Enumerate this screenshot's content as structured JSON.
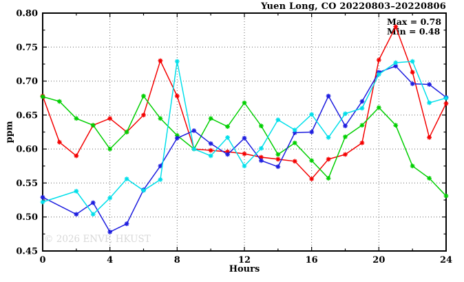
{
  "title": "Yuen Long, CO 20220803–20220806",
  "annotation": {
    "max_label": "Max = 0.78",
    "min_label": "Min = 0.48"
  },
  "watermark": "© 2026 ENVF, HKUST",
  "colors": {
    "axis": "#000000",
    "grid": "#666666",
    "watermark": "#d8d8d8"
  },
  "chart_data": {
    "type": "line",
    "title": "Yuen Long, CO 20220803–20220806",
    "xlabel": "Hours",
    "ylabel": "ppm",
    "xlim": [
      0,
      24
    ],
    "ylim": [
      0.45,
      0.8
    ],
    "xticks": [
      0,
      4,
      8,
      12,
      16,
      20,
      24
    ],
    "yticks": [
      0.45,
      0.5,
      0.55,
      0.6,
      0.65,
      0.7,
      0.75,
      0.8
    ],
    "x_minor_step": 2,
    "y_minor_step": 0.025,
    "grid": true,
    "legend_position": "none",
    "marker": "asterisk",
    "stats": {
      "max": 0.78,
      "min": 0.48
    },
    "x": [
      0,
      1,
      2,
      3,
      4,
      5,
      6,
      7,
      8,
      9,
      10,
      11,
      12,
      13,
      14,
      15,
      16,
      17,
      18,
      19,
      20,
      21,
      22,
      23,
      24
    ],
    "series": [
      {
        "name": "series-red",
        "color": "#f40000",
        "values": [
          0.678,
          0.61,
          0.59,
          0.635,
          0.645,
          0.625,
          0.65,
          0.73,
          0.678,
          0.6,
          0.598,
          0.596,
          0.593,
          0.588,
          0.585,
          0.582,
          0.556,
          0.585,
          0.592,
          0.609,
          0.731,
          0.78,
          0.713,
          0.617,
          0.667
        ]
      },
      {
        "name": "series-green",
        "color": "#00cf00",
        "values": [
          0.677,
          0.67,
          0.645,
          0.635,
          0.6,
          0.625,
          0.678,
          0.645,
          0.62,
          0.6,
          0.645,
          0.633,
          0.668,
          0.634,
          0.592,
          0.609,
          0.583,
          0.557,
          0.618,
          0.635,
          0.661,
          0.635,
          0.575,
          0.557,
          0.531
        ]
      },
      {
        "name": "series-blue",
        "color": "#1c1cdf",
        "values": [
          0.529,
          null,
          0.504,
          0.521,
          0.478,
          0.49,
          0.54,
          0.575,
          0.616,
          0.627,
          0.608,
          0.592,
          0.616,
          0.583,
          0.574,
          0.624,
          0.625,
          0.678,
          0.634,
          0.67,
          0.713,
          0.722,
          0.696,
          0.695,
          0.676
        ]
      },
      {
        "name": "series-cyan",
        "color": "#00dfea",
        "values": [
          0.522,
          null,
          0.538,
          0.504,
          0.528,
          0.556,
          0.539,
          0.555,
          0.729,
          0.6,
          0.59,
          0.617,
          0.575,
          0.601,
          0.643,
          0.628,
          0.651,
          0.617,
          0.652,
          0.66,
          0.71,
          0.727,
          0.729,
          0.668,
          0.675
        ]
      }
    ]
  }
}
